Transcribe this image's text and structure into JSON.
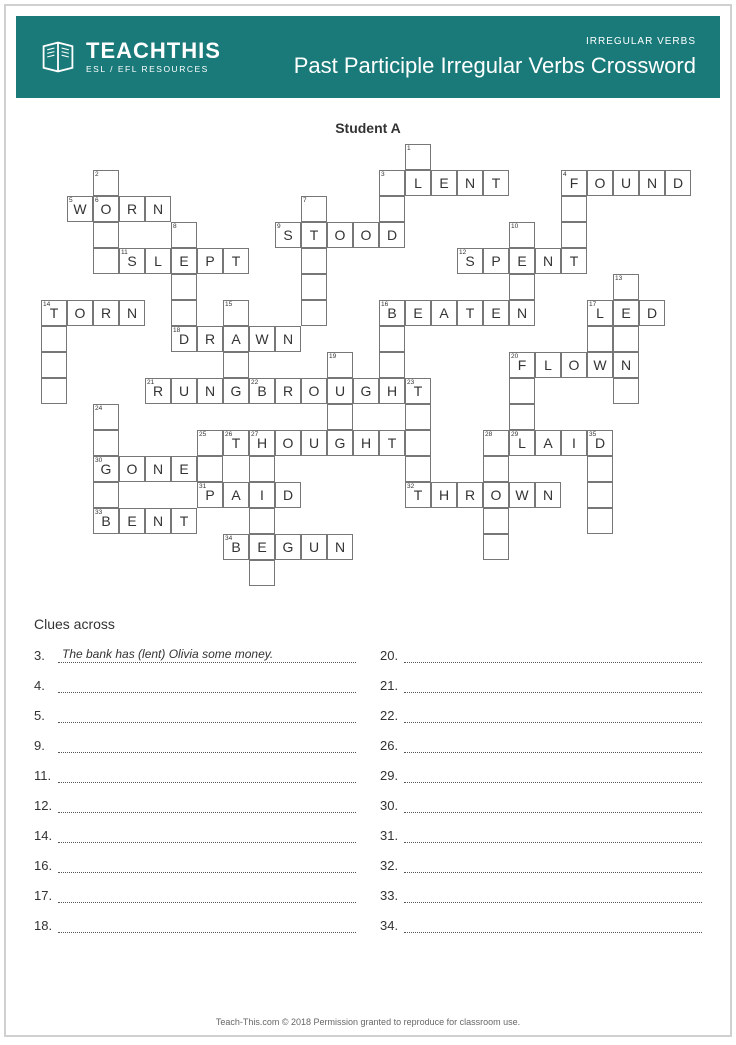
{
  "header": {
    "brand_main": "TEACHTHIS",
    "brand_sub": "ESL / EFL RESOURCES",
    "category": "IRREGULAR VERBS",
    "title": "Past Participle Irregular Verbs Crossword"
  },
  "student_label": "Student A",
  "crossword": {
    "cell_size": 26,
    "cells": [
      {
        "r": 0,
        "c": 14,
        "n": "1"
      },
      {
        "r": 1,
        "c": 2,
        "n": "2"
      },
      {
        "r": 1,
        "c": 13,
        "n": "3"
      },
      {
        "r": 1,
        "c": 14,
        "l": "L"
      },
      {
        "r": 1,
        "c": 15,
        "l": "E"
      },
      {
        "r": 1,
        "c": 16,
        "l": "N"
      },
      {
        "r": 1,
        "c": 17,
        "l": "T"
      },
      {
        "r": 1,
        "c": 20,
        "n": "4",
        "l": "F"
      },
      {
        "r": 1,
        "c": 21,
        "l": "O"
      },
      {
        "r": 1,
        "c": 22,
        "l": "U"
      },
      {
        "r": 1,
        "c": 23,
        "l": "N"
      },
      {
        "r": 1,
        "c": 24,
        "l": "D"
      },
      {
        "r": 2,
        "c": 1,
        "n": "5",
        "l": "W"
      },
      {
        "r": 2,
        "c": 2,
        "l": "O",
        "n": "6"
      },
      {
        "r": 2,
        "c": 3,
        "l": "R"
      },
      {
        "r": 2,
        "c": 4,
        "l": "N"
      },
      {
        "r": 2,
        "c": 10,
        "n": "7"
      },
      {
        "r": 2,
        "c": 13
      },
      {
        "r": 2,
        "c": 20
      },
      {
        "r": 3,
        "c": 2
      },
      {
        "r": 3,
        "c": 5,
        "n": "8"
      },
      {
        "r": 3,
        "c": 9,
        "n": "9",
        "l": "S"
      },
      {
        "r": 3,
        "c": 10,
        "l": "T"
      },
      {
        "r": 3,
        "c": 11,
        "l": "O"
      },
      {
        "r": 3,
        "c": 12,
        "l": "O"
      },
      {
        "r": 3,
        "c": 13,
        "l": "D"
      },
      {
        "r": 3,
        "c": 18,
        "n": "10"
      },
      {
        "r": 3,
        "c": 20
      },
      {
        "r": 4,
        "c": 2
      },
      {
        "r": 4,
        "c": 3,
        "n": "11",
        "l": "S"
      },
      {
        "r": 4,
        "c": 4,
        "l": "L"
      },
      {
        "r": 4,
        "c": 5,
        "l": "E"
      },
      {
        "r": 4,
        "c": 6,
        "l": "P"
      },
      {
        "r": 4,
        "c": 7,
        "l": "T"
      },
      {
        "r": 4,
        "c": 10
      },
      {
        "r": 4,
        "c": 16,
        "n": "12",
        "l": "S"
      },
      {
        "r": 4,
        "c": 17,
        "l": "P"
      },
      {
        "r": 4,
        "c": 18,
        "l": "E"
      },
      {
        "r": 4,
        "c": 19,
        "l": "N"
      },
      {
        "r": 4,
        "c": 20,
        "l": "T"
      },
      {
        "r": 5,
        "c": 5
      },
      {
        "r": 5,
        "c": 10
      },
      {
        "r": 5,
        "c": 18
      },
      {
        "r": 5,
        "c": 22,
        "n": "13"
      },
      {
        "r": 6,
        "c": 0,
        "n": "14",
        "l": "T"
      },
      {
        "r": 6,
        "c": 1,
        "l": "O"
      },
      {
        "r": 6,
        "c": 2,
        "l": "R"
      },
      {
        "r": 6,
        "c": 3,
        "l": "N"
      },
      {
        "r": 6,
        "c": 5
      },
      {
        "r": 6,
        "c": 7,
        "n": "15"
      },
      {
        "r": 6,
        "c": 10
      },
      {
        "r": 6,
        "c": 13,
        "n": "16",
        "l": "B"
      },
      {
        "r": 6,
        "c": 14,
        "l": "E"
      },
      {
        "r": 6,
        "c": 15,
        "l": "A"
      },
      {
        "r": 6,
        "c": 16,
        "l": "T"
      },
      {
        "r": 6,
        "c": 17,
        "l": "E"
      },
      {
        "r": 6,
        "c": 18,
        "l": "N"
      },
      {
        "r": 6,
        "c": 21,
        "n": "17",
        "l": "L"
      },
      {
        "r": 6,
        "c": 22,
        "l": "E"
      },
      {
        "r": 6,
        "c": 23,
        "l": "D"
      },
      {
        "r": 7,
        "c": 0
      },
      {
        "r": 7,
        "c": 5,
        "n": "18",
        "l": "D"
      },
      {
        "r": 7,
        "c": 6,
        "l": "R"
      },
      {
        "r": 7,
        "c": 7,
        "l": "A"
      },
      {
        "r": 7,
        "c": 8,
        "l": "W"
      },
      {
        "r": 7,
        "c": 9,
        "l": "N"
      },
      {
        "r": 7,
        "c": 13
      },
      {
        "r": 7,
        "c": 21
      },
      {
        "r": 7,
        "c": 22
      },
      {
        "r": 8,
        "c": 0
      },
      {
        "r": 8,
        "c": 7
      },
      {
        "r": 8,
        "c": 11,
        "n": "19"
      },
      {
        "r": 8,
        "c": 13
      },
      {
        "r": 8,
        "c": 18,
        "n": "20",
        "l": "F"
      },
      {
        "r": 8,
        "c": 19,
        "l": "L"
      },
      {
        "r": 8,
        "c": 20,
        "l": "O"
      },
      {
        "r": 8,
        "c": 21,
        "l": "W"
      },
      {
        "r": 8,
        "c": 22,
        "l": "N"
      },
      {
        "r": 9,
        "c": 0
      },
      {
        "r": 9,
        "c": 4,
        "n": "21",
        "l": "R"
      },
      {
        "r": 9,
        "c": 5,
        "l": "U"
      },
      {
        "r": 9,
        "c": 6,
        "l": "N"
      },
      {
        "r": 9,
        "c": 7,
        "l": "G"
      },
      {
        "r": 9,
        "c": 8,
        "n": "22",
        "l": "B"
      },
      {
        "r": 9,
        "c": 9,
        "l": "R"
      },
      {
        "r": 9,
        "c": 10,
        "l": "O"
      },
      {
        "r": 9,
        "c": 11,
        "l": "U"
      },
      {
        "r": 9,
        "c": 12,
        "l": "G"
      },
      {
        "r": 9,
        "c": 13,
        "l": "H"
      },
      {
        "r": 9,
        "c": 14,
        "l": "T",
        "n": "23"
      },
      {
        "r": 9,
        "c": 18
      },
      {
        "r": 9,
        "c": 22
      },
      {
        "r": 10,
        "c": 2,
        "n": "24"
      },
      {
        "r": 10,
        "c": 11
      },
      {
        "r": 10,
        "c": 14
      },
      {
        "r": 10,
        "c": 18
      },
      {
        "r": 11,
        "c": 2
      },
      {
        "r": 11,
        "c": 6,
        "n": "25"
      },
      {
        "r": 11,
        "c": 7,
        "n": "26",
        "l": "T"
      },
      {
        "r": 11,
        "c": 8,
        "l": "H",
        "n": "27"
      },
      {
        "r": 11,
        "c": 9,
        "l": "O"
      },
      {
        "r": 11,
        "c": 10,
        "l": "U"
      },
      {
        "r": 11,
        "c": 11,
        "l": "G"
      },
      {
        "r": 11,
        "c": 12,
        "l": "H"
      },
      {
        "r": 11,
        "c": 13,
        "l": "T"
      },
      {
        "r": 11,
        "c": 14
      },
      {
        "r": 11,
        "c": 17,
        "n": "28"
      },
      {
        "r": 11,
        "c": 18,
        "n": "29",
        "l": "L"
      },
      {
        "r": 11,
        "c": 19,
        "l": "A"
      },
      {
        "r": 11,
        "c": 20,
        "l": "I"
      },
      {
        "r": 11,
        "c": 21,
        "l": "D",
        "n": "35"
      },
      {
        "r": 12,
        "c": 2,
        "n": "30",
        "l": "G"
      },
      {
        "r": 12,
        "c": 3,
        "l": "O"
      },
      {
        "r": 12,
        "c": 4,
        "l": "N"
      },
      {
        "r": 12,
        "c": 5,
        "l": "E"
      },
      {
        "r": 12,
        "c": 6
      },
      {
        "r": 12,
        "c": 8
      },
      {
        "r": 12,
        "c": 14
      },
      {
        "r": 12,
        "c": 17
      },
      {
        "r": 12,
        "c": 21
      },
      {
        "r": 13,
        "c": 2
      },
      {
        "r": 13,
        "c": 6,
        "n": "31",
        "l": "P"
      },
      {
        "r": 13,
        "c": 7,
        "l": "A"
      },
      {
        "r": 13,
        "c": 8,
        "l": "I"
      },
      {
        "r": 13,
        "c": 9,
        "l": "D"
      },
      {
        "r": 13,
        "c": 14,
        "n": "32",
        "l": "T"
      },
      {
        "r": 13,
        "c": 15,
        "l": "H"
      },
      {
        "r": 13,
        "c": 16,
        "l": "R"
      },
      {
        "r": 13,
        "c": 17,
        "l": "O"
      },
      {
        "r": 13,
        "c": 18,
        "l": "W"
      },
      {
        "r": 13,
        "c": 19,
        "l": "N"
      },
      {
        "r": 13,
        "c": 21
      },
      {
        "r": 14,
        "c": 2,
        "n": "33",
        "l": "B"
      },
      {
        "r": 14,
        "c": 3,
        "l": "E"
      },
      {
        "r": 14,
        "c": 4,
        "l": "N"
      },
      {
        "r": 14,
        "c": 5,
        "l": "T"
      },
      {
        "r": 14,
        "c": 8
      },
      {
        "r": 14,
        "c": 17
      },
      {
        "r": 14,
        "c": 21
      },
      {
        "r": 15,
        "c": 7,
        "n": "34",
        "l": "B"
      },
      {
        "r": 15,
        "c": 8,
        "l": "E"
      },
      {
        "r": 15,
        "c": 9,
        "l": "G"
      },
      {
        "r": 15,
        "c": 10,
        "l": "U"
      },
      {
        "r": 15,
        "c": 11,
        "l": "N"
      },
      {
        "r": 15,
        "c": 17
      },
      {
        "r": 16,
        "c": 8
      }
    ]
  },
  "clues": {
    "title": "Clues across",
    "left": [
      {
        "num": "3.",
        "answer": "The bank has (lent) Olivia some money."
      },
      {
        "num": "4."
      },
      {
        "num": "5."
      },
      {
        "num": "9."
      },
      {
        "num": "11."
      },
      {
        "num": "12."
      },
      {
        "num": "14."
      },
      {
        "num": "16."
      },
      {
        "num": "17."
      },
      {
        "num": "18."
      }
    ],
    "right": [
      {
        "num": "20."
      },
      {
        "num": "21."
      },
      {
        "num": "22."
      },
      {
        "num": "26."
      },
      {
        "num": "29."
      },
      {
        "num": "30."
      },
      {
        "num": "31."
      },
      {
        "num": "32."
      },
      {
        "num": "33."
      },
      {
        "num": "34."
      }
    ]
  },
  "footer": "Teach-This.com © 2018 Permission granted to reproduce for classroom use."
}
